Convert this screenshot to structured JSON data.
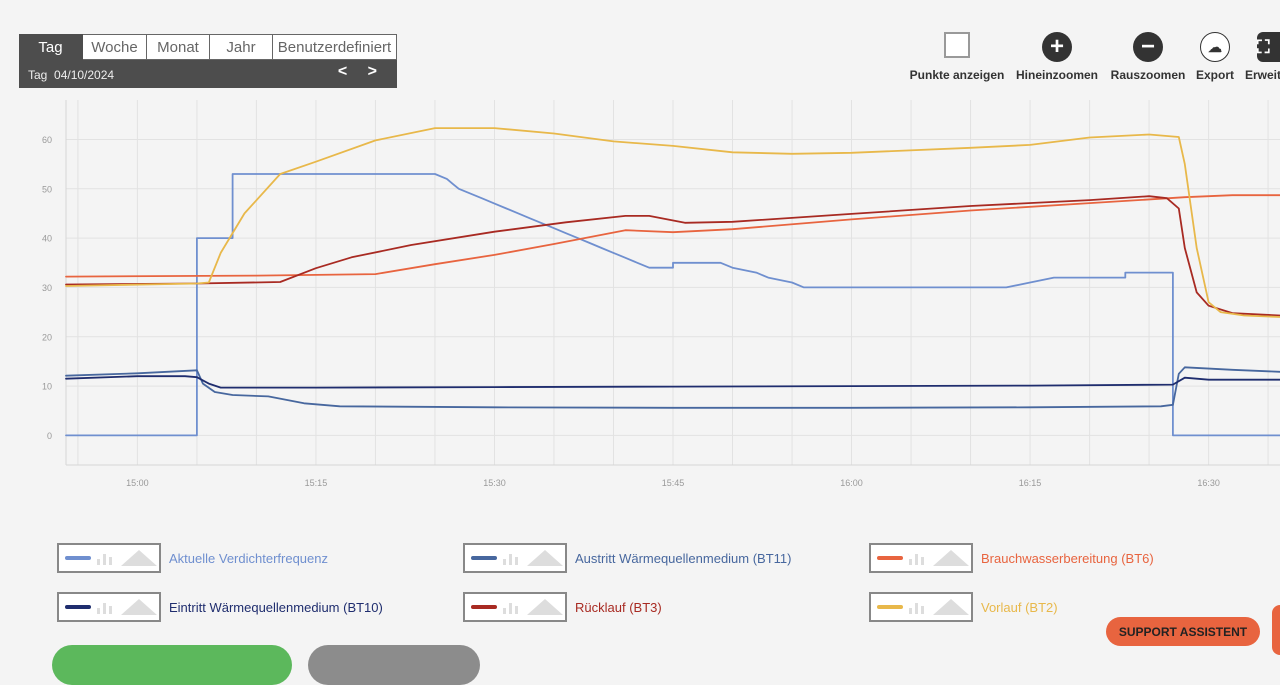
{
  "range": {
    "tabs": [
      "Tag",
      "Woche",
      "Monat",
      "Jahr",
      "Benutzerdefiniert"
    ],
    "active": "Tag",
    "label": "Tag  04/10/2024",
    "nav": "< >"
  },
  "toolbar": {
    "points_label": "Punkte anzeigen",
    "zoom_in_label": "Hineinzoomen",
    "zoom_out_label": "Rauszoomen",
    "export_label": "Export",
    "expand_label": "Erweit"
  },
  "support_label": "SUPPORT ASSISTENT",
  "chart_data": {
    "type": "line",
    "xlim": [
      "14:54",
      "16:36"
    ],
    "ylim": [
      -6,
      68
    ],
    "xticks": [
      "15:00",
      "15:15",
      "15:30",
      "15:45",
      "16:00",
      "16:15",
      "16:30"
    ],
    "yticks": [
      0,
      10,
      20,
      30,
      40,
      50,
      60
    ],
    "grid": true,
    "legend_position": "bottom",
    "series": [
      {
        "name": "Aktuelle Verdichterfrequenz",
        "color": "#6f8fcf",
        "step": true,
        "points": [
          [
            "14:54",
            0
          ],
          [
            "15:05",
            0
          ],
          [
            "15:05",
            40
          ],
          [
            "15:08",
            40
          ],
          [
            "15:08",
            53
          ],
          [
            "15:25",
            53
          ],
          [
            "15:26",
            52
          ],
          [
            "15:26.5",
            51
          ],
          [
            "15:27",
            50
          ],
          [
            "15:28",
            49
          ],
          [
            "15:29",
            48
          ],
          [
            "15:30",
            47
          ],
          [
            "15:31",
            46
          ],
          [
            "15:32",
            45
          ],
          [
            "15:33",
            44
          ],
          [
            "15:34",
            43
          ],
          [
            "15:35",
            42
          ],
          [
            "15:36",
            41
          ],
          [
            "15:37",
            40
          ],
          [
            "15:38",
            39
          ],
          [
            "15:39",
            38
          ],
          [
            "15:40",
            37
          ],
          [
            "15:41",
            36
          ],
          [
            "15:42",
            35
          ],
          [
            "15:43",
            34
          ],
          [
            "15:45",
            34
          ],
          [
            "15:45",
            35
          ],
          [
            "15:49",
            35
          ],
          [
            "15:50",
            34
          ],
          [
            "15:52",
            33
          ],
          [
            "15:53",
            32
          ],
          [
            "15:55",
            31
          ],
          [
            "15:56",
            30
          ],
          [
            "16:13",
            30
          ],
          [
            "16:15",
            31
          ],
          [
            "16:17",
            32
          ],
          [
            "16:23",
            32
          ],
          [
            "16:23",
            33
          ],
          [
            "16:27",
            33
          ],
          [
            "16:27",
            0
          ],
          [
            "16:36",
            0
          ]
        ]
      },
      {
        "name": "Austritt Wärmequellenmedium (BT11)",
        "color": "#47679e",
        "points": [
          [
            "14:54",
            12.1
          ],
          [
            "15:00",
            12.6
          ],
          [
            "15:05",
            13.2
          ],
          [
            "15:05.5",
            10.5
          ],
          [
            "15:06.5",
            8.8
          ],
          [
            "15:08",
            8.2
          ],
          [
            "15:11",
            7.9
          ],
          [
            "15:14",
            6.5
          ],
          [
            "15:17",
            5.9
          ],
          [
            "15:30",
            5.7
          ],
          [
            "15:45",
            5.6
          ],
          [
            "16:00",
            5.6
          ],
          [
            "16:15",
            5.7
          ],
          [
            "16:26",
            5.9
          ],
          [
            "16:27",
            6.2
          ],
          [
            "16:27.5",
            12.5
          ],
          [
            "16:28",
            13.8
          ],
          [
            "16:32",
            13.3
          ],
          [
            "16:36",
            12.9
          ]
        ]
      },
      {
        "name": "Brauchwasserbereitung (BT6)",
        "color": "#e8643f",
        "points": [
          [
            "14:54",
            32.2
          ],
          [
            "15:10",
            32.4
          ],
          [
            "15:20",
            32.7
          ],
          [
            "15:25",
            34.7
          ],
          [
            "15:30",
            36.6
          ],
          [
            "15:35",
            38.8
          ],
          [
            "15:41",
            41.6
          ],
          [
            "15:45",
            41.2
          ],
          [
            "15:50",
            41.8
          ],
          [
            "16:00",
            43.8
          ],
          [
            "16:10",
            45.6
          ],
          [
            "16:20",
            47.1
          ],
          [
            "16:28",
            48.3
          ],
          [
            "16:32",
            48.7
          ],
          [
            "16:36",
            48.7
          ]
        ]
      },
      {
        "name": "Eintritt Wärmequellenmedium (BT10)",
        "color": "#1f2d6e",
        "points": [
          [
            "14:54",
            11.5
          ],
          [
            "15:00",
            12.0
          ],
          [
            "15:04",
            12.0
          ],
          [
            "15:05",
            11.8
          ],
          [
            "15:06",
            10.5
          ],
          [
            "15:07",
            9.7
          ],
          [
            "15:15",
            9.7
          ],
          [
            "15:30",
            9.8
          ],
          [
            "15:45",
            9.9
          ],
          [
            "16:00",
            10.0
          ],
          [
            "16:15",
            10.1
          ],
          [
            "16:27",
            10.3
          ],
          [
            "16:28",
            11.7
          ],
          [
            "16:30",
            11.3
          ],
          [
            "16:36",
            11.3
          ]
        ]
      },
      {
        "name": "Rücklauf (BT3)",
        "color": "#a82a22",
        "points": [
          [
            "14:54",
            30.6
          ],
          [
            "15:05",
            30.8
          ],
          [
            "15:12",
            31.1
          ],
          [
            "15:15",
            33.9
          ],
          [
            "15:18",
            36.1
          ],
          [
            "15:23",
            38.6
          ],
          [
            "15:30",
            41.3
          ],
          [
            "15:36",
            43.2
          ],
          [
            "15:41",
            44.5
          ],
          [
            "15:43",
            44.5
          ],
          [
            "15:46",
            43.1
          ],
          [
            "15:50",
            43.3
          ],
          [
            "16:00",
            44.9
          ],
          [
            "16:10",
            46.5
          ],
          [
            "16:20",
            47.7
          ],
          [
            "16:25",
            48.5
          ],
          [
            "16:26.5",
            48.1
          ],
          [
            "16:27.5",
            46.0
          ],
          [
            "16:28",
            38.0
          ],
          [
            "16:29",
            29.0
          ],
          [
            "16:30",
            26.3
          ],
          [
            "16:32",
            24.8
          ],
          [
            "16:36",
            24.3
          ]
        ]
      },
      {
        "name": "Vorlauf (BT2)",
        "color": "#e8b84a",
        "points": [
          [
            "14:54",
            30.3
          ],
          [
            "15:05",
            30.8
          ],
          [
            "15:06",
            31.0
          ],
          [
            "15:07",
            37.0
          ],
          [
            "15:09",
            45.0
          ],
          [
            "15:12",
            53.0
          ],
          [
            "15:15",
            55.5
          ],
          [
            "15:20",
            59.8
          ],
          [
            "15:25",
            62.3
          ],
          [
            "15:30",
            62.3
          ],
          [
            "15:35",
            61.2
          ],
          [
            "15:40",
            59.6
          ],
          [
            "15:45",
            58.7
          ],
          [
            "15:50",
            57.4
          ],
          [
            "15:55",
            57.1
          ],
          [
            "16:00",
            57.3
          ],
          [
            "16:10",
            58.3
          ],
          [
            "16:15",
            58.9
          ],
          [
            "16:20",
            60.4
          ],
          [
            "16:25",
            61.0
          ],
          [
            "16:27.5",
            60.5
          ],
          [
            "16:28",
            55.0
          ],
          [
            "16:29",
            38.0
          ],
          [
            "16:30",
            27.0
          ],
          [
            "16:31",
            25.0
          ],
          [
            "16:33",
            24.3
          ],
          [
            "16:36",
            24.0
          ]
        ]
      }
    ]
  }
}
